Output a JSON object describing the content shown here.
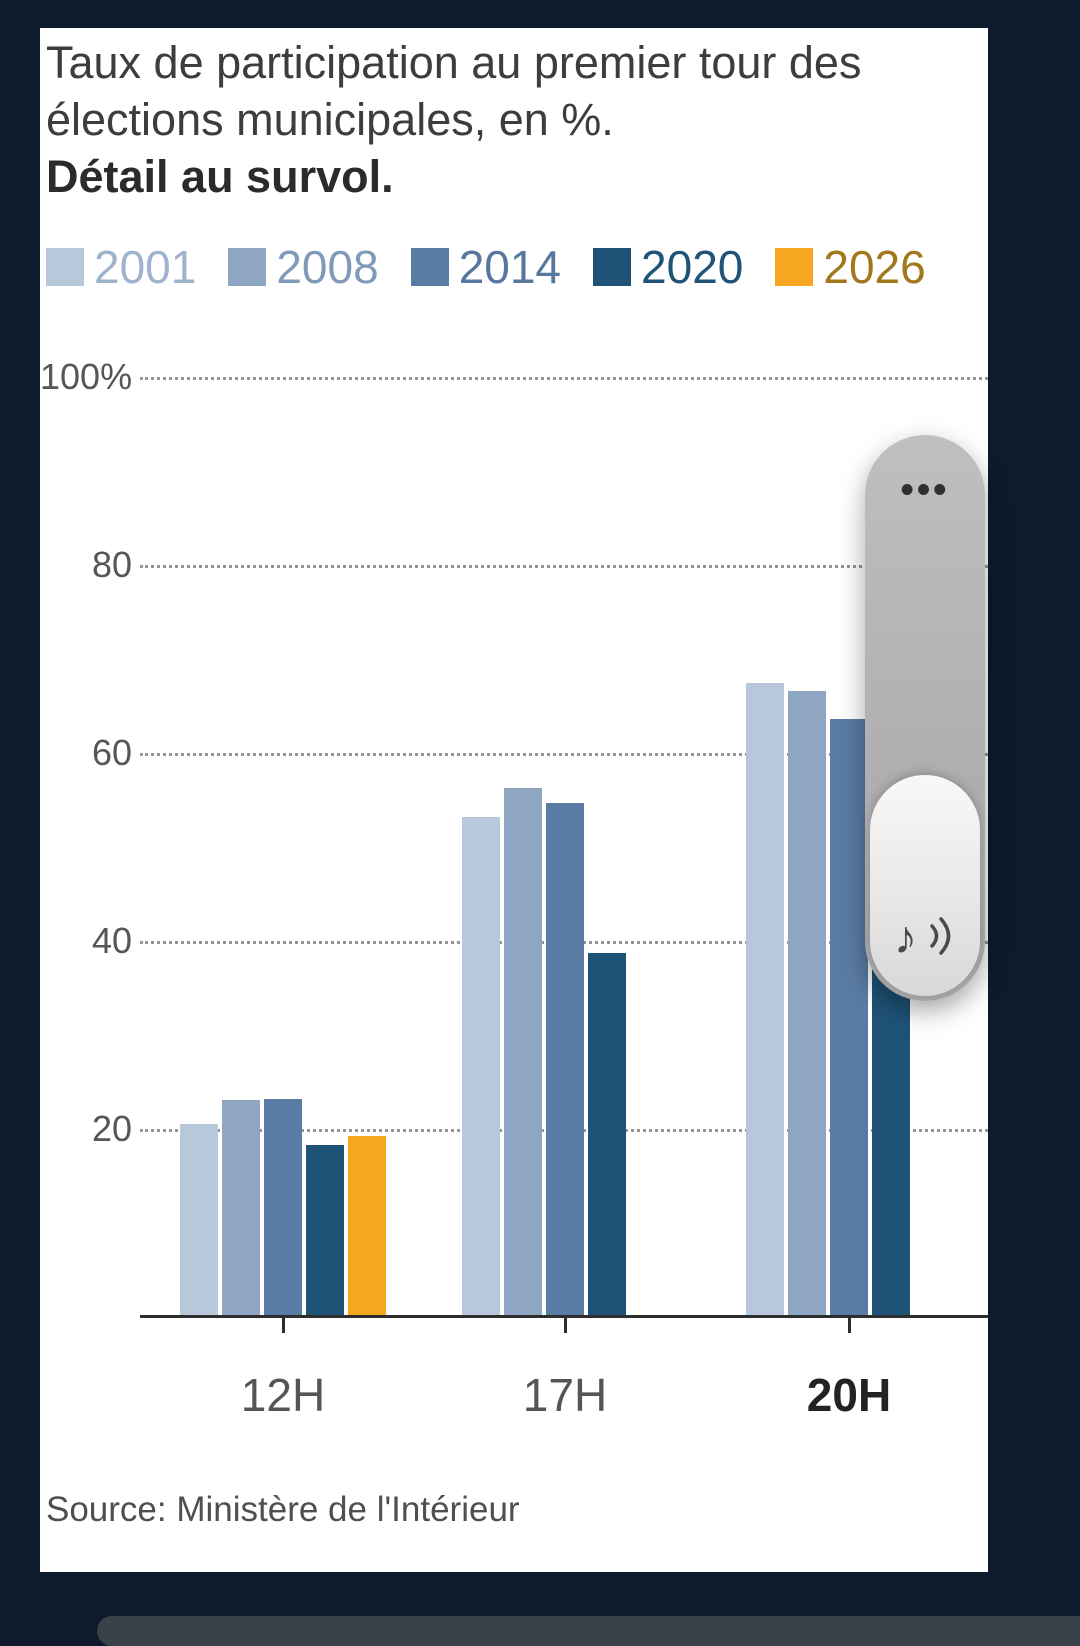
{
  "colors": {
    "background_frame": "#0d1b2c",
    "card_background": "#ffffff",
    "grid": "#969696",
    "axis": "#2e2e2e",
    "accent_orange": "#f6a61f"
  },
  "header": {
    "title": "Taux de participation au premier tour des élections municipales, en %.",
    "subtitle_bold": "Détail au survol."
  },
  "legend": {
    "items": [
      {
        "label": "2001",
        "color": "#b7c8db",
        "text_color": "#9fb3cc"
      },
      {
        "label": "2008",
        "color": "#8fa6c3",
        "text_color": "#8199ba"
      },
      {
        "label": "2014",
        "color": "#5a7ca4",
        "text_color": "#58779f"
      },
      {
        "label": "2020",
        "color": "#1e5277",
        "text_color": "#1f5378"
      },
      {
        "label": "2026",
        "color": "#f6a61f",
        "text_color": "#a1791c"
      }
    ]
  },
  "chart_data": {
    "type": "bar",
    "title": "Taux de participation au premier tour des élections municipales, en %.",
    "categories": [
      "12H",
      "17H",
      "20H"
    ],
    "bold_category": "20H",
    "series": [
      {
        "name": "2001",
        "color": "#b7c8db",
        "values": [
          20.6,
          53.3,
          67.6
        ]
      },
      {
        "name": "2008",
        "color": "#8fa6c3",
        "values": [
          23.2,
          56.4,
          66.7
        ]
      },
      {
        "name": "2014",
        "color": "#5a7ca4",
        "values": [
          23.3,
          54.8,
          63.7
        ]
      },
      {
        "name": "2020",
        "color": "#1e5277",
        "values": [
          18.4,
          38.8,
          44.7
        ]
      },
      {
        "name": "2026",
        "color": "#f6a61f",
        "values": [
          19.4,
          null,
          null
        ]
      }
    ],
    "xlabel": "",
    "ylabel": "",
    "ylim": [
      0,
      100
    ],
    "yticks": [
      {
        "value": 100,
        "label": "100%"
      },
      {
        "value": 80,
        "label": "80"
      },
      {
        "value": 60,
        "label": "60"
      },
      {
        "value": 40,
        "label": "40"
      },
      {
        "value": 20,
        "label": "20"
      }
    ],
    "grid": "horizontal-dotted",
    "legend_position": "top"
  },
  "source": {
    "text": "Source: Ministère de l'Intérieur"
  },
  "overlay_widget": {
    "dots_icon": "•••",
    "audio_icon": "♪"
  }
}
